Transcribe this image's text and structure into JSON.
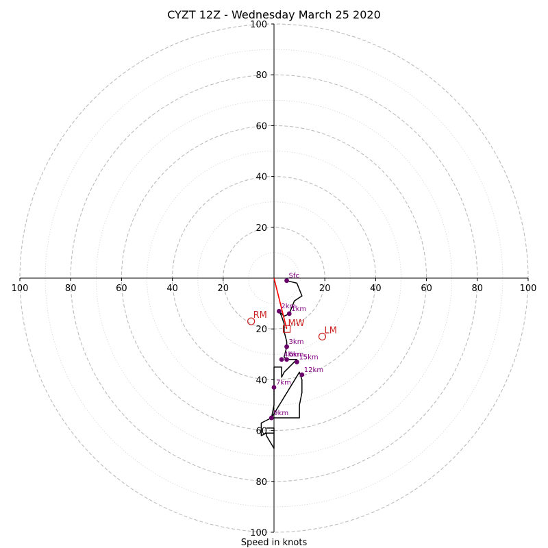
{
  "chart_data": {
    "type": "hodograph",
    "title": "CYZT 12Z - Wednesday March 25 2020",
    "xlabel": "Speed in knots",
    "ylabel": "",
    "xlim": [
      -100,
      100
    ],
    "ylim": [
      -100,
      100
    ],
    "tick_labels": [
      "20",
      "40",
      "60",
      "80",
      "100"
    ],
    "tick_values": [
      20,
      40,
      60,
      80,
      100
    ],
    "rings_dashed": [
      20,
      40,
      60,
      80,
      100
    ],
    "rings_dotted": [
      10,
      30,
      50,
      70,
      90
    ],
    "hodograph_line": [
      {
        "u": 5,
        "v": -1
      },
      {
        "u": 9,
        "v": -2
      },
      {
        "u": 11,
        "v": -7
      },
      {
        "u": 8,
        "v": -9
      },
      {
        "u": 6,
        "v": -14
      },
      {
        "u": 4,
        "v": -15
      },
      {
        "u": 2,
        "v": -13
      },
      {
        "u": 3,
        "v": -15
      },
      {
        "u": 4,
        "v": -18
      },
      {
        "u": 4,
        "v": -21
      },
      {
        "u": 5,
        "v": -25
      },
      {
        "u": 5,
        "v": -27
      },
      {
        "u": 4,
        "v": -31
      },
      {
        "u": 5,
        "v": -32
      },
      {
        "u": 8,
        "v": -32
      },
      {
        "u": 9,
        "v": -32
      },
      {
        "u": 4,
        "v": -37
      },
      {
        "u": 3,
        "v": -39
      },
      {
        "u": 3,
        "v": -35
      },
      {
        "u": 0,
        "v": -35
      },
      {
        "u": 0,
        "v": -43
      },
      {
        "u": 0,
        "v": -50
      },
      {
        "u": -1,
        "v": -55
      },
      {
        "u": 10,
        "v": -55
      },
      {
        "u": 10,
        "v": -50
      },
      {
        "u": 11,
        "v": -45
      },
      {
        "u": 11,
        "v": -40
      },
      {
        "u": 10,
        "v": -37
      },
      {
        "u": -1,
        "v": -55
      },
      {
        "u": -5,
        "v": -57
      },
      {
        "u": -5,
        "v": -62
      },
      {
        "u": -3,
        "v": -61
      },
      {
        "u": 0,
        "v": -61
      },
      {
        "u": -3,
        "v": -61
      },
      {
        "u": -3,
        "v": -62
      },
      {
        "u": 0,
        "v": -67
      },
      {
        "u": 0,
        "v": -59
      },
      {
        "u": -3,
        "v": -59
      }
    ],
    "height_markers": [
      {
        "label": "Sfc",
        "u": 5,
        "v": -1
      },
      {
        "label": "1km",
        "u": 6,
        "v": -14
      },
      {
        "label": "2km",
        "u": 2,
        "v": -13
      },
      {
        "label": "3km",
        "u": 5,
        "v": -27
      },
      {
        "label": "4km",
        "u": 3,
        "v": -32
      },
      {
        "label": "6km",
        "u": 5,
        "v": -32
      },
      {
        "label": "15km",
        "u": 9,
        "v": -33
      },
      {
        "label": "12km",
        "u": 11,
        "v": -38
      },
      {
        "label": "7km",
        "u": 0,
        "v": -43
      },
      {
        "label": "9km",
        "u": -1,
        "v": -55
      }
    ],
    "storm_motion": [
      {
        "label": "RM",
        "u": -9,
        "v": -17,
        "marker": "circle"
      },
      {
        "label": "LM",
        "u": 19,
        "v": -23,
        "marker": "circle"
      },
      {
        "label": "MW",
        "u": 5,
        "v": -20,
        "marker": "square"
      }
    ],
    "shear_vector": {
      "from": {
        "u": 0,
        "v": 0
      },
      "to": {
        "u": 5,
        "v": -20
      }
    },
    "colors": {
      "ring": "#bbbbbb",
      "axis": "#000000",
      "hodograph": "#000000",
      "height_marker": "#6a006a",
      "height_label": "#800080",
      "storm_motion": "#cc2222",
      "shear_vector": "#ff0000"
    },
    "grid": true
  }
}
